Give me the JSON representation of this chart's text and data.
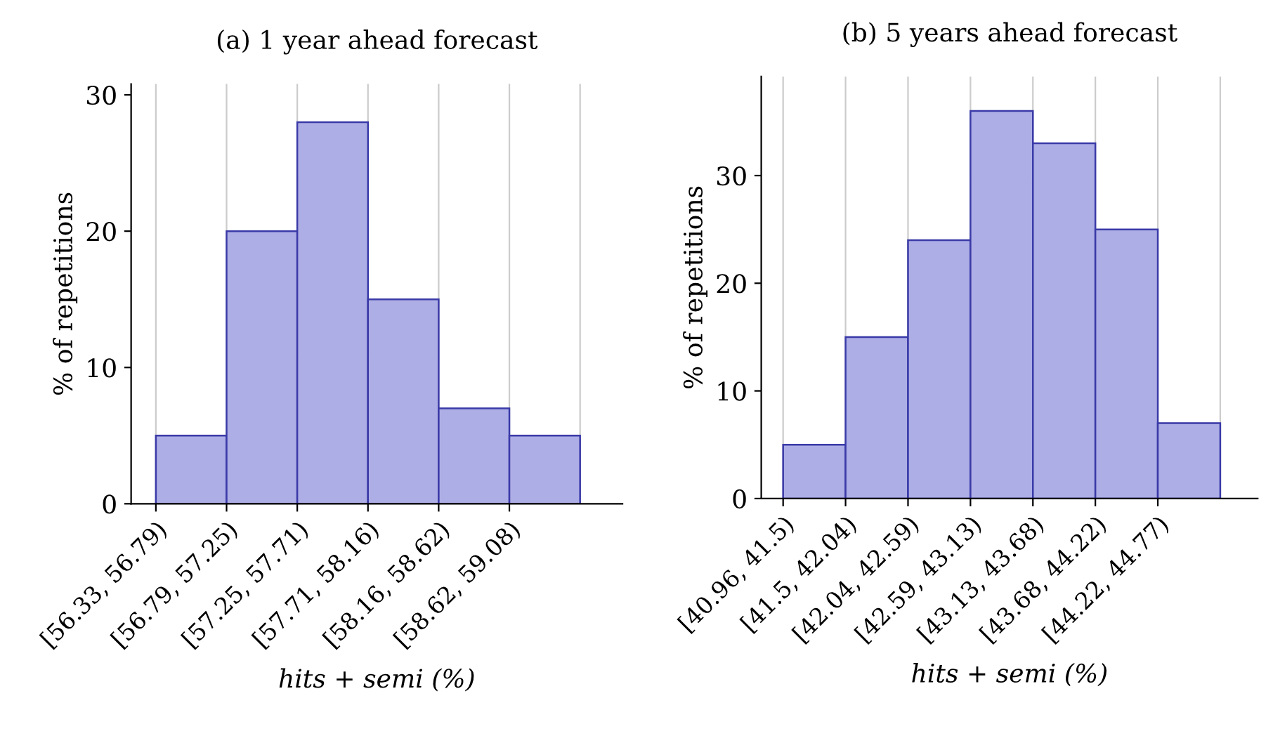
{
  "chart_data": [
    {
      "type": "bar",
      "title": "(a) 1 year ahead forecast",
      "xlabel": "hits + semi (%)",
      "ylabel": "% of repetitions",
      "categories": [
        "[56.33, 56.79)",
        "[56.79, 57.25)",
        "[57.25, 57.71)",
        "[57.71, 58.16)",
        "[58.16, 58.62)",
        "[58.62, 59.08)"
      ],
      "values": [
        5,
        20,
        28,
        15,
        7,
        5
      ],
      "color": "#aeaee6",
      "ylim": [
        0,
        30.8
      ],
      "yticks": [
        0,
        10,
        20,
        30
      ],
      "grid": "x",
      "legend": false
    },
    {
      "type": "bar",
      "title": "(b) 5 years ahead forecast",
      "xlabel": "hits + semi (%)",
      "ylabel": "% of repetitions",
      "categories": [
        "[40.96, 41.5)",
        "[41.5, 42.04)",
        "[42.04, 42.59)",
        "[42.59, 43.13)",
        "[43.13, 43.68)",
        "[43.68, 44.22)",
        "[44.22, 44.77)"
      ],
      "values": [
        5,
        15,
        24,
        36,
        33,
        25,
        7
      ],
      "color": "#aeaee6",
      "ylim": [
        0,
        39.2
      ],
      "yticks": [
        0,
        10,
        20,
        30
      ],
      "grid": "x",
      "legend": false
    }
  ]
}
